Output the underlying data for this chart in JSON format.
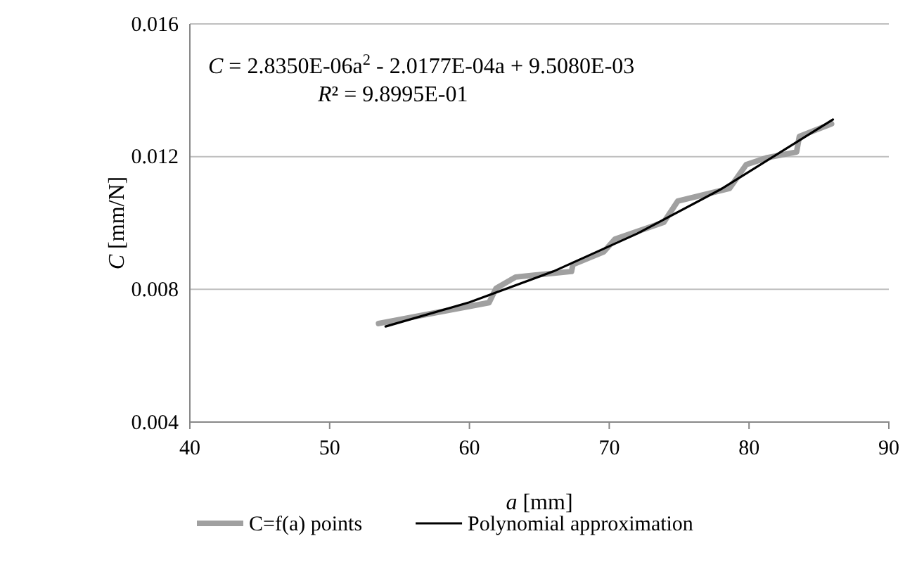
{
  "chart_data": {
    "type": "line",
    "xlabel": "a [mm]",
    "ylabel": "C [mm/N]",
    "annotations": [
      "C = 2.8350E-06a$^{2}$ - 2.0177E-04a + 9.5080E-03",
      "R² = 9.8995E-01"
    ],
    "xlim": [
      40,
      90
    ],
    "xticks": [
      40,
      50,
      60,
      70,
      80,
      90
    ],
    "ylim": [
      0.004,
      0.016
    ],
    "yticks": [
      {
        "value": 0.004,
        "label": "0.004"
      },
      {
        "value": 0.008,
        "label": "0.008"
      },
      {
        "value": 0.012,
        "label": "0.012"
      },
      {
        "value": 0.016,
        "label": "0.016"
      }
    ],
    "grid": "y",
    "legend": "bottom",
    "marker": "none",
    "line_style": "solid",
    "series": [
      {
        "name": "C=f(a) points",
        "color": "#a0a0a0",
        "x": [
          53.5,
          61.4,
          61.9,
          63.3,
          67.3,
          67.4,
          69.6,
          70.4,
          73.9,
          74.9,
          78.6,
          79.8,
          81.3,
          83.4,
          83.6,
          85.9
        ],
        "values": [
          0.00697,
          0.0076,
          0.00803,
          0.00837,
          0.00854,
          0.00875,
          0.00913,
          0.00951,
          0.01002,
          0.01066,
          0.01104,
          0.01176,
          0.01197,
          0.01214,
          0.01261,
          0.01299
        ]
      },
      {
        "name": "Polynomial approximation",
        "color": "#000000",
        "x": [
          54,
          60,
          66,
          72,
          78,
          86
        ],
        "values": [
          0.00688,
          0.00761,
          0.00854,
          0.00968,
          0.01102,
          0.01312
        ]
      }
    ]
  }
}
